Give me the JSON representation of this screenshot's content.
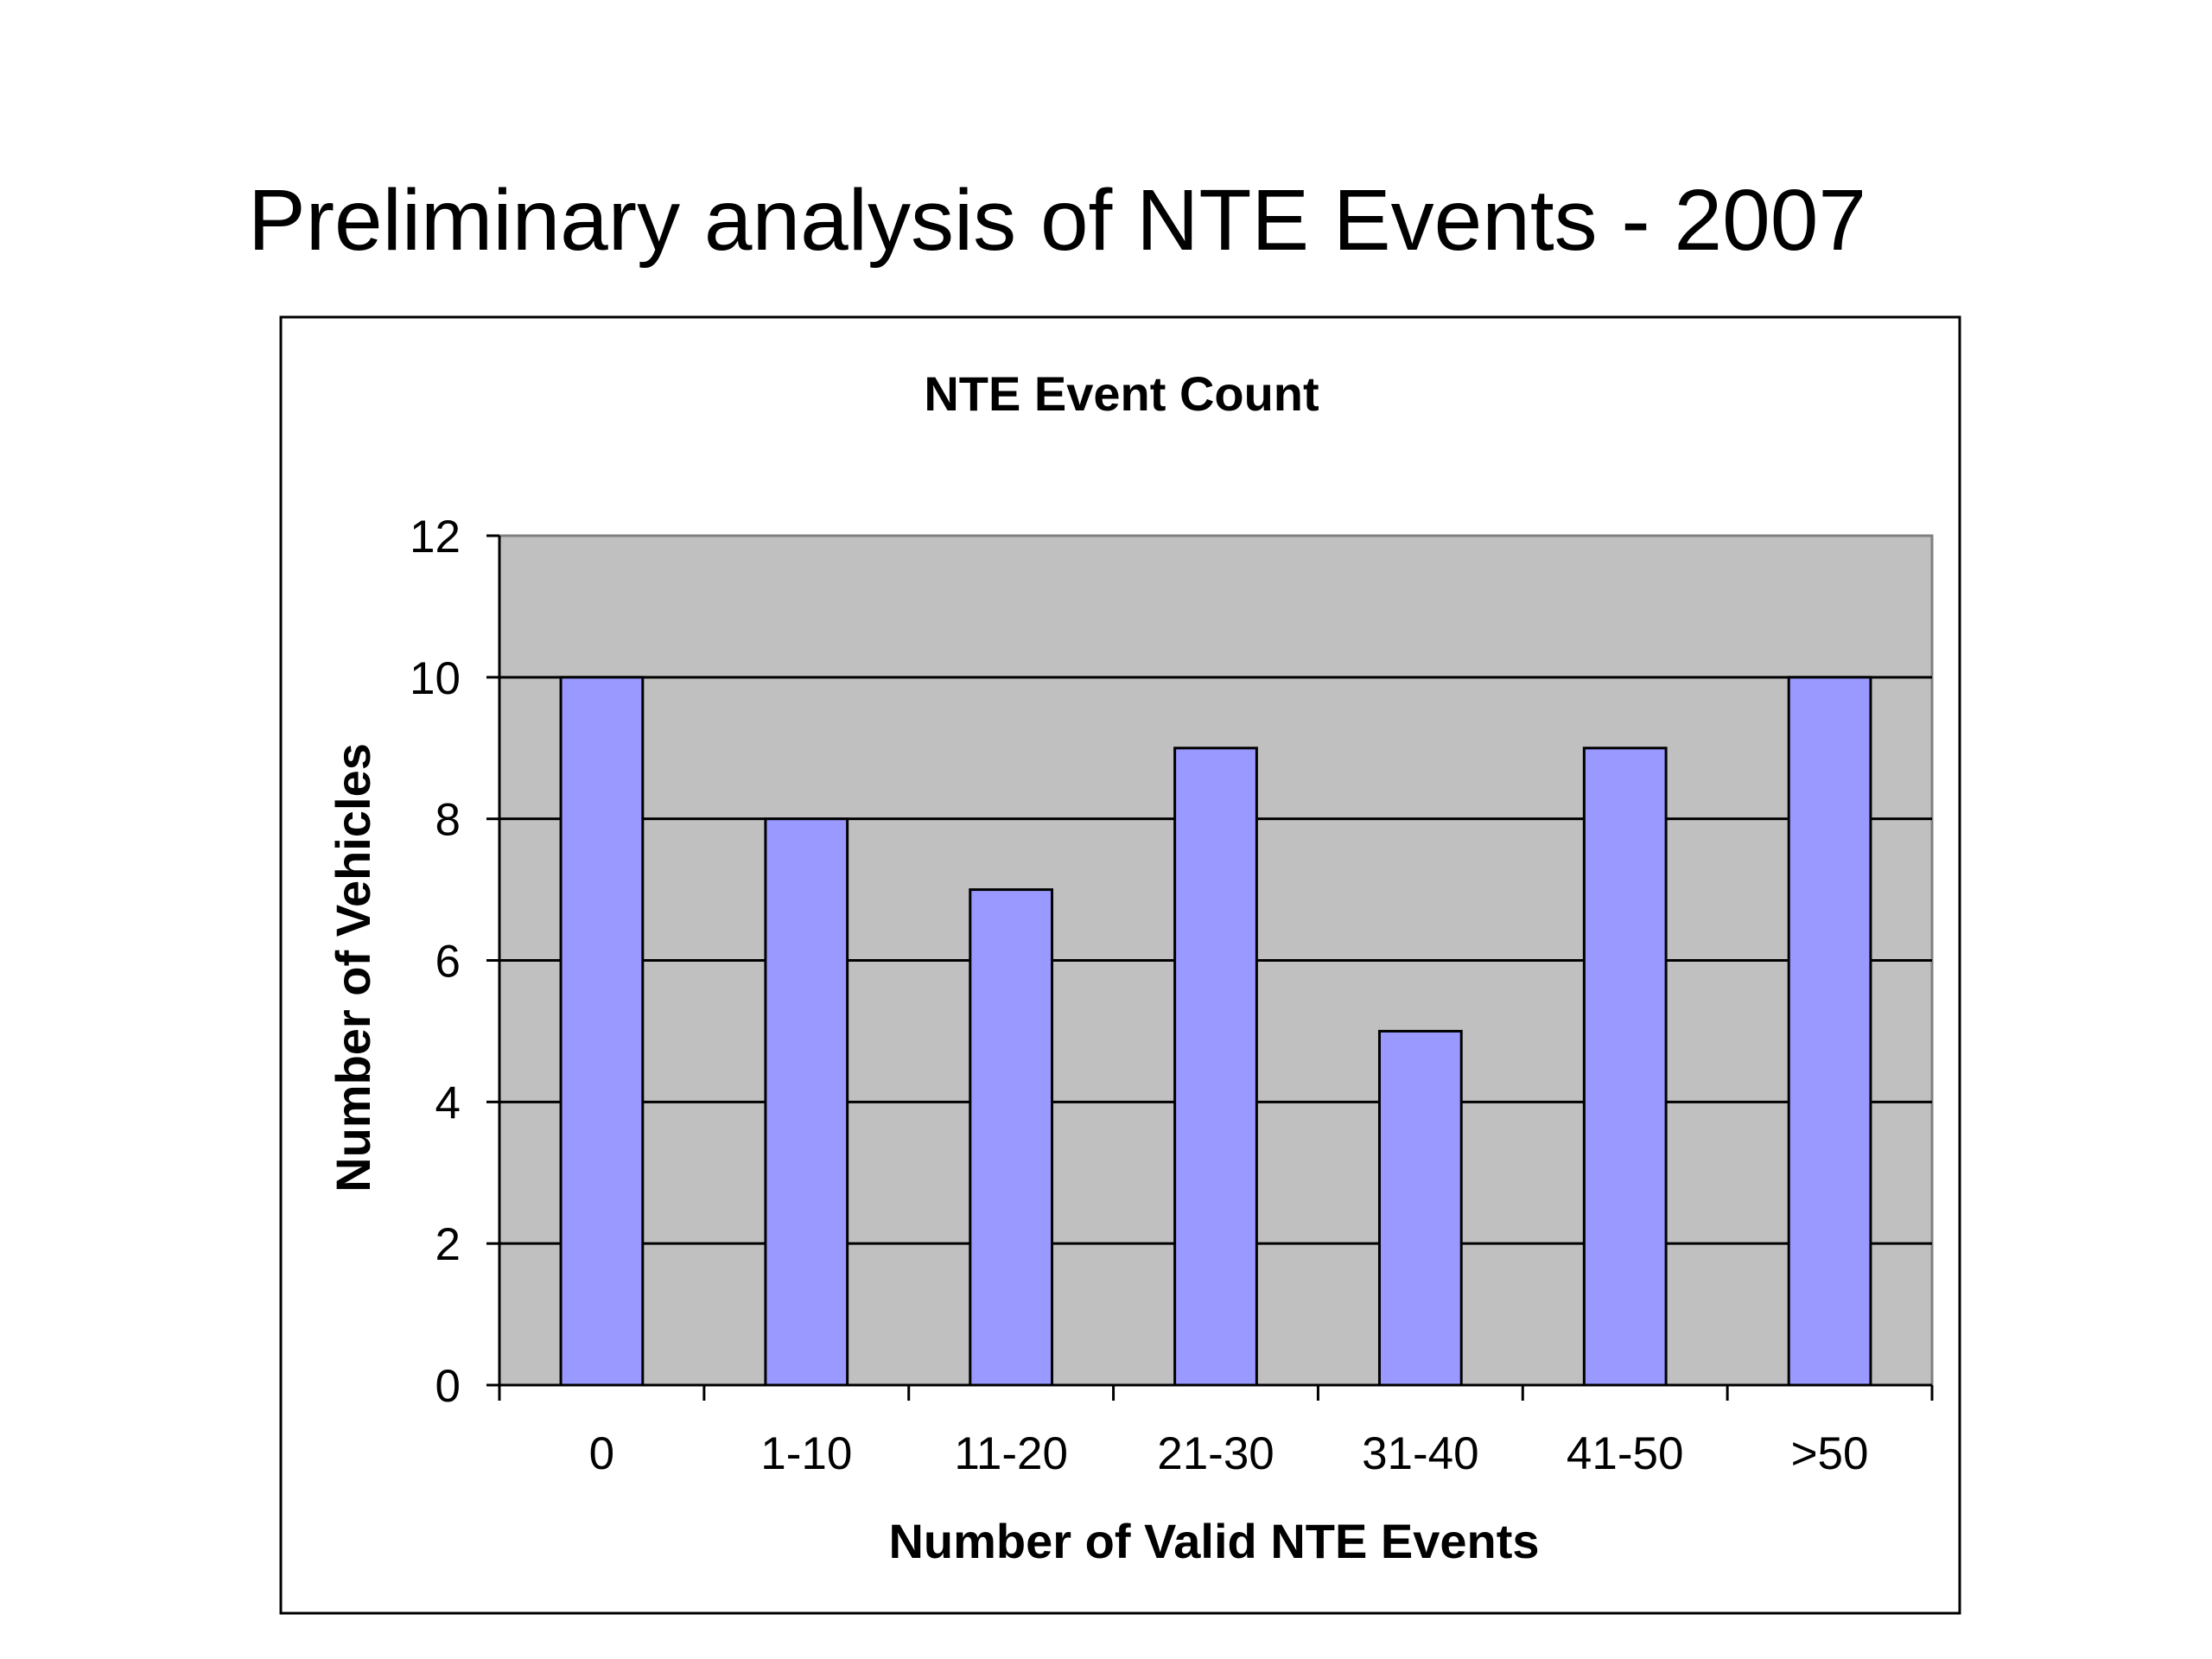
{
  "slide": {
    "title": "Preliminary analysis of NTE Events - 2007"
  },
  "chart_data": {
    "type": "bar",
    "title": "NTE Event Count",
    "xlabel": "Number of Valid NTE Events",
    "ylabel": "Number of Vehicles",
    "categories": [
      "0",
      "1-10",
      "11-20",
      "21-30",
      "31-40",
      "41-50",
      ">50"
    ],
    "values": [
      10,
      8,
      7,
      9,
      5,
      9,
      10
    ],
    "ylim": [
      0,
      12
    ],
    "yticks": [
      0,
      2,
      4,
      6,
      8,
      10,
      12
    ],
    "grid": true,
    "legend": "none",
    "colors": {
      "bar_fill": "#9999ff",
      "plot_background": "#c0c0c0",
      "gridline": "#000000"
    }
  }
}
